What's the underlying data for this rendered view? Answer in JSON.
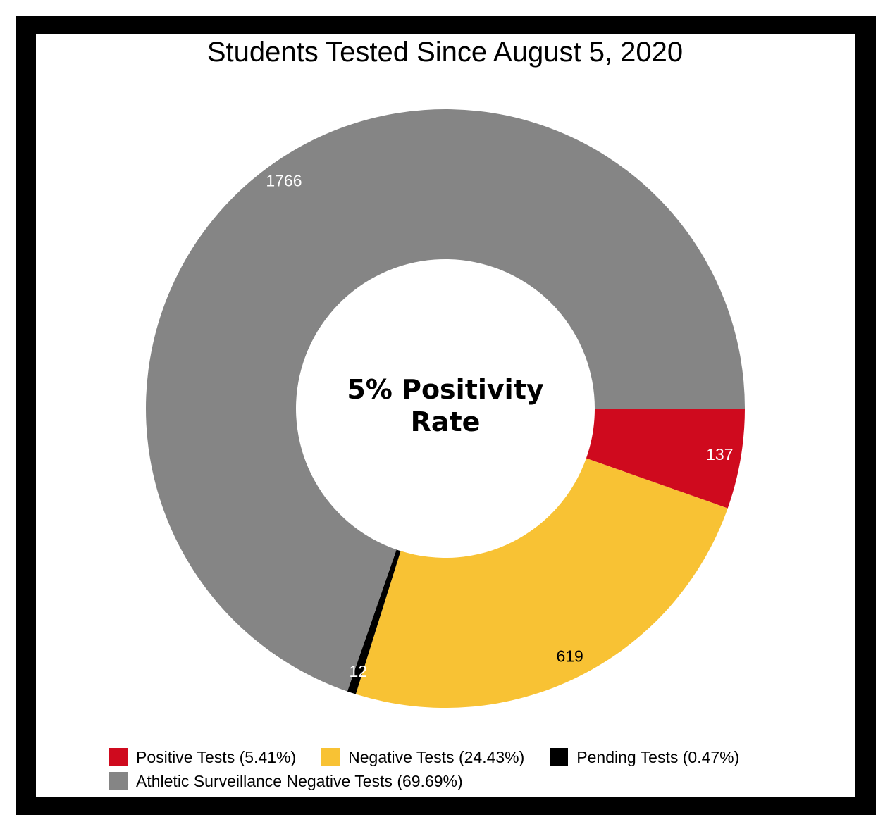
{
  "chart_data": {
    "type": "pie",
    "title": "Students Tested Since August 5, 2020",
    "center_label": [
      "5% Positivity",
      "Rate"
    ],
    "slices": [
      {
        "name": "Positive Tests (5.41%)",
        "value": 137,
        "label": "137",
        "color": "#cf0a1e",
        "label_color": "#ffffff"
      },
      {
        "name": "Negative Tests (24.43%)",
        "value": 619,
        "label": "619",
        "color": "#f8c234",
        "label_color": "#000000"
      },
      {
        "name": "Pending Tests (0.47%)",
        "value": 12,
        "label": "12",
        "color": "#000000",
        "label_color": "#ffffff"
      },
      {
        "name": "Athletic Surveillance Negative Tests (69.69%)",
        "value": 1766,
        "label": "1766",
        "color": "#858585",
        "label_color": "#ffffff"
      }
    ],
    "legend_position": "bottom"
  }
}
